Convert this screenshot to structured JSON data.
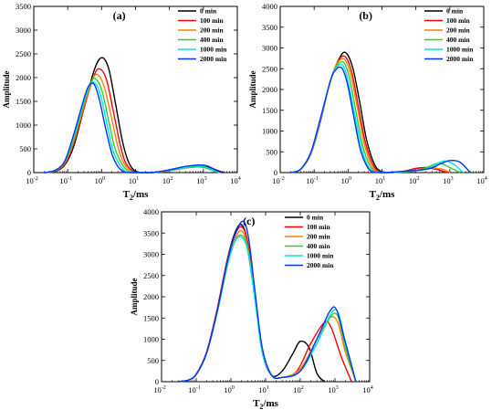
{
  "series_styles": [
    {
      "name": "0 min",
      "color": "#000000"
    },
    {
      "name": "100 min",
      "color": "#ff0000"
    },
    {
      "name": "200 min",
      "color": "#ff8000"
    },
    {
      "name": "400 min",
      "color": "#33cc33"
    },
    {
      "name": "1000 min",
      "color": "#00e5e5"
    },
    {
      "name": "2000 min",
      "color": "#0033ff"
    }
  ],
  "chart_data": [
    {
      "type": "line",
      "panel_label": "(a)",
      "xlabel": "T",
      "xlabel_sub": "2",
      "xlabel_unit": "/ms",
      "ylabel": "Amplitude",
      "x_scale": "log",
      "xlim": [
        0.01,
        10000
      ],
      "ylim": [
        0,
        3500
      ],
      "yticks": [
        0,
        500,
        1000,
        1500,
        2000,
        2500,
        3000,
        3500
      ],
      "xtick_exponents": [
        -2,
        -1,
        0,
        1,
        2,
        3,
        4
      ],
      "legend": "top-right",
      "series": [
        {
          "name": "0 min",
          "x": [
            0.02,
            0.04,
            0.08,
            0.15,
            0.3,
            0.6,
            1.0,
            1.6,
            2.5,
            4,
            6,
            9,
            15,
            30,
            100,
            300,
            800,
            1500,
            2500,
            4000
          ],
          "y": [
            0,
            20,
            150,
            550,
            1350,
            2150,
            2420,
            2200,
            1500,
            700,
            250,
            50,
            0,
            0,
            40,
            100,
            130,
            110,
            50,
            0
          ]
        },
        {
          "name": "100 min",
          "x": [
            0.02,
            0.04,
            0.08,
            0.15,
            0.3,
            0.6,
            0.9,
            1.4,
            2.2,
            3.5,
            5,
            8,
            12,
            30,
            100,
            300,
            700,
            1300,
            2200,
            3500
          ],
          "y": [
            0,
            25,
            170,
            600,
            1350,
            2050,
            2180,
            1950,
            1300,
            600,
            220,
            40,
            0,
            0,
            40,
            100,
            125,
            100,
            40,
            0
          ]
        },
        {
          "name": "200 min",
          "x": [
            0.02,
            0.04,
            0.08,
            0.15,
            0.3,
            0.55,
            0.8,
            1.2,
            1.9,
            3,
            4.5,
            7,
            11,
            30,
            100,
            300,
            700,
            1200,
            2000,
            3200
          ],
          "y": [
            0,
            30,
            190,
            650,
            1400,
            1980,
            2050,
            1800,
            1200,
            550,
            200,
            35,
            0,
            0,
            40,
            95,
            120,
            95,
            40,
            0
          ]
        },
        {
          "name": "400 min",
          "x": [
            0.02,
            0.04,
            0.08,
            0.15,
            0.3,
            0.5,
            0.7,
            1.05,
            1.6,
            2.5,
            4,
            6,
            9,
            30,
            100,
            300,
            700,
            1100,
            1900,
            3000
          ],
          "y": [
            0,
            35,
            200,
            700,
            1450,
            1920,
            1960,
            1700,
            1100,
            500,
            180,
            30,
            0,
            0,
            45,
            100,
            125,
            100,
            45,
            0
          ]
        },
        {
          "name": "1000 min",
          "x": [
            0.02,
            0.04,
            0.08,
            0.15,
            0.3,
            0.45,
            0.65,
            0.95,
            1.4,
            2.2,
            3.5,
            5,
            8,
            30,
            100,
            300,
            700,
            1100,
            1900,
            3000
          ],
          "y": [
            0,
            40,
            220,
            760,
            1500,
            1850,
            1880,
            1600,
            1050,
            450,
            150,
            25,
            0,
            0,
            50,
            110,
            140,
            120,
            55,
            0
          ]
        },
        {
          "name": "2000 min",
          "x": [
            0.02,
            0.04,
            0.08,
            0.15,
            0.3,
            0.42,
            0.6,
            0.85,
            1.25,
            2,
            3,
            4.5,
            7,
            30,
            100,
            300,
            800,
            1300,
            2200,
            3500
          ],
          "y": [
            0,
            40,
            230,
            800,
            1550,
            1830,
            1860,
            1550,
            1000,
            400,
            130,
            20,
            0,
            0,
            60,
            130,
            160,
            140,
            60,
            0
          ]
        }
      ]
    },
    {
      "type": "line",
      "panel_label": "(b)",
      "xlabel": "T",
      "xlabel_sub": "2",
      "xlabel_unit": "/ms",
      "ylabel": "Amplitude",
      "x_scale": "log",
      "xlim": [
        0.01,
        10000
      ],
      "ylim": [
        0,
        4000
      ],
      "yticks": [
        0,
        500,
        1000,
        1500,
        2000,
        2500,
        3000,
        3500,
        4000
      ],
      "xtick_exponents": [
        -2,
        -1,
        0,
        1,
        2,
        3,
        4
      ],
      "legend": "top-right",
      "series": [
        {
          "name": "0 min",
          "x": [
            0.02,
            0.04,
            0.08,
            0.15,
            0.3,
            0.6,
            0.9,
            1.4,
            2.2,
            3.5,
            6,
            10,
            20,
            50,
            100,
            200,
            400,
            800
          ],
          "y": [
            0,
            80,
            450,
            1200,
            2200,
            2800,
            2870,
            2500,
            1700,
            800,
            200,
            20,
            0,
            40,
            100,
            120,
            80,
            0
          ]
        },
        {
          "name": "100 min",
          "x": [
            0.02,
            0.04,
            0.08,
            0.15,
            0.3,
            0.55,
            0.85,
            1.3,
            2,
            3.2,
            5.5,
            9,
            18,
            50,
            100,
            200,
            400,
            800
          ],
          "y": [
            0,
            80,
            450,
            1200,
            2200,
            2720,
            2780,
            2400,
            1600,
            750,
            180,
            15,
            0,
            40,
            100,
            120,
            80,
            0
          ]
        },
        {
          "name": "200 min",
          "x": [
            0.02,
            0.04,
            0.08,
            0.15,
            0.3,
            0.5,
            0.8,
            1.2,
            1.9,
            3,
            5,
            8,
            16,
            60,
            150,
            300,
            600,
            1000
          ],
          "y": [
            0,
            80,
            460,
            1220,
            2200,
            2650,
            2720,
            2350,
            1550,
            700,
            160,
            12,
            0,
            30,
            80,
            110,
            80,
            0
          ]
        },
        {
          "name": "400 min",
          "x": [
            0.02,
            0.04,
            0.08,
            0.15,
            0.3,
            0.48,
            0.75,
            1.1,
            1.7,
            2.7,
            4.5,
            7,
            14,
            100,
            250,
            500,
            1000,
            2000
          ],
          "y": [
            0,
            80,
            470,
            1240,
            2200,
            2580,
            2650,
            2280,
            1480,
            650,
            150,
            10,
            0,
            40,
            150,
            230,
            120,
            0
          ]
        },
        {
          "name": "1000 min",
          "x": [
            0.02,
            0.04,
            0.08,
            0.15,
            0.3,
            0.45,
            0.7,
            1.0,
            1.55,
            2.5,
            4,
            6.5,
            13,
            150,
            350,
            700,
            1300,
            2500
          ],
          "y": [
            0,
            80,
            480,
            1260,
            2200,
            2520,
            2580,
            2200,
            1420,
            600,
            130,
            8,
            0,
            60,
            180,
            280,
            200,
            0
          ]
        },
        {
          "name": "2000 min",
          "x": [
            0.02,
            0.04,
            0.08,
            0.15,
            0.3,
            0.42,
            0.65,
            0.95,
            1.45,
            2.3,
            3.8,
            6,
            12,
            200,
            500,
            1000,
            2000,
            4000
          ],
          "y": [
            0,
            80,
            490,
            1280,
            2200,
            2460,
            2520,
            2150,
            1380,
            560,
            120,
            5,
            0,
            80,
            200,
            290,
            250,
            0
          ]
        }
      ]
    },
    {
      "type": "line",
      "panel_label": "(c)",
      "xlabel": "T",
      "xlabel_sub": "2",
      "xlabel_unit": "/ms",
      "ylabel": "Amplitude",
      "x_scale": "log",
      "xlim": [
        0.01,
        10000
      ],
      "ylim": [
        0,
        4000
      ],
      "yticks": [
        0,
        500,
        1000,
        1500,
        2000,
        2500,
        3000,
        3500,
        4000
      ],
      "xtick_exponents": [
        -2,
        -1,
        0,
        1,
        2,
        3,
        4
      ],
      "legend": "top-right",
      "series": [
        {
          "name": "0 min",
          "x": [
            0.03,
            0.06,
            0.1,
            0.2,
            0.4,
            0.8,
            1.3,
            2,
            3,
            5,
            8,
            15,
            30,
            60,
            100,
            180,
            300,
            500
          ],
          "y": [
            0,
            40,
            180,
            700,
            1700,
            2900,
            3500,
            3700,
            3300,
            2000,
            700,
            150,
            250,
            650,
            950,
            800,
            200,
            0
          ]
        },
        {
          "name": "100 min",
          "x": [
            0.03,
            0.06,
            0.1,
            0.2,
            0.4,
            0.8,
            1.3,
            2,
            3,
            5,
            8,
            15,
            30,
            80,
            200,
            500,
            800,
            1500,
            3000
          ],
          "y": [
            0,
            40,
            180,
            700,
            1700,
            2900,
            3450,
            3650,
            3300,
            2000,
            700,
            150,
            100,
            250,
            900,
            1400,
            1250,
            600,
            0
          ]
        },
        {
          "name": "200 min",
          "x": [
            0.03,
            0.06,
            0.1,
            0.2,
            0.4,
            0.8,
            1.3,
            2,
            3,
            5,
            8,
            15,
            30,
            100,
            300,
            700,
            1200,
            2000,
            4000
          ],
          "y": [
            0,
            40,
            170,
            680,
            1650,
            2800,
            3350,
            3550,
            3200,
            1950,
            700,
            150,
            100,
            300,
            1000,
            1500,
            1400,
            700,
            0
          ]
        },
        {
          "name": "400 min",
          "x": [
            0.03,
            0.06,
            0.1,
            0.2,
            0.4,
            0.8,
            1.3,
            2,
            3,
            5,
            8,
            15,
            30,
            100,
            300,
            700,
            1200,
            2000,
            4000
          ],
          "y": [
            0,
            40,
            170,
            670,
            1620,
            2750,
            3300,
            3450,
            3150,
            1900,
            700,
            150,
            100,
            250,
            900,
            1500,
            1550,
            800,
            0
          ]
        },
        {
          "name": "1000 min",
          "x": [
            0.03,
            0.06,
            0.1,
            0.2,
            0.4,
            0.8,
            1.3,
            2,
            3,
            5,
            8,
            15,
            30,
            100,
            300,
            700,
            1200,
            2000,
            4000
          ],
          "y": [
            0,
            40,
            170,
            670,
            1620,
            2750,
            3300,
            3400,
            3100,
            1900,
            700,
            150,
            100,
            250,
            900,
            1550,
            1650,
            900,
            0
          ]
        },
        {
          "name": "2000 min",
          "x": [
            0.03,
            0.06,
            0.1,
            0.2,
            0.4,
            0.8,
            1.3,
            2.2,
            3.2,
            5,
            8,
            15,
            30,
            100,
            300,
            700,
            1100,
            1900,
            4000
          ],
          "y": [
            0,
            40,
            170,
            680,
            1650,
            2850,
            3450,
            3780,
            3400,
            2100,
            800,
            150,
            100,
            250,
            1000,
            1650,
            1700,
            1000,
            0
          ]
        }
      ]
    }
  ]
}
